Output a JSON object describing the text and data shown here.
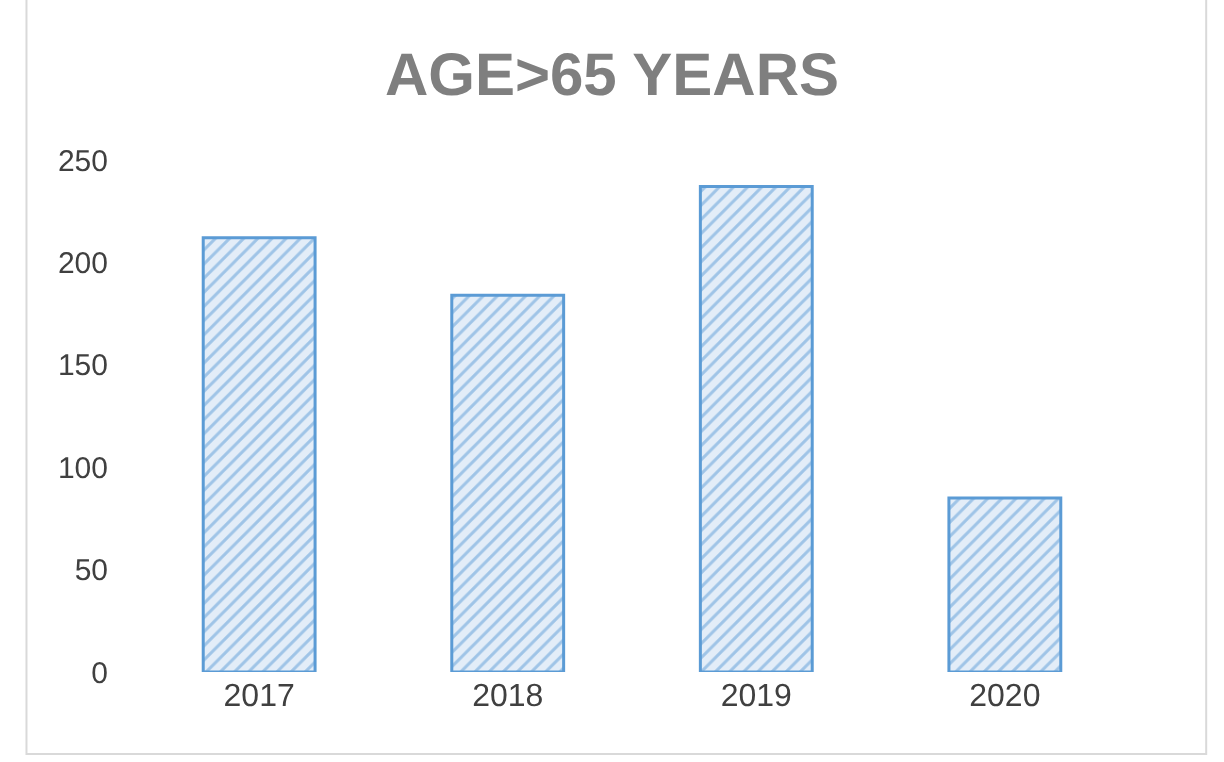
{
  "chart_data": {
    "type": "bar",
    "title": "AGE>65 YEARS",
    "categories": [
      "2017",
      "2018",
      "2019",
      "2020"
    ],
    "values": [
      212,
      184,
      237,
      85
    ],
    "color": "#5b9bd5",
    "ylim": [
      0,
      250
    ],
    "yticks": [
      0,
      50,
      100,
      150,
      200,
      250
    ]
  }
}
